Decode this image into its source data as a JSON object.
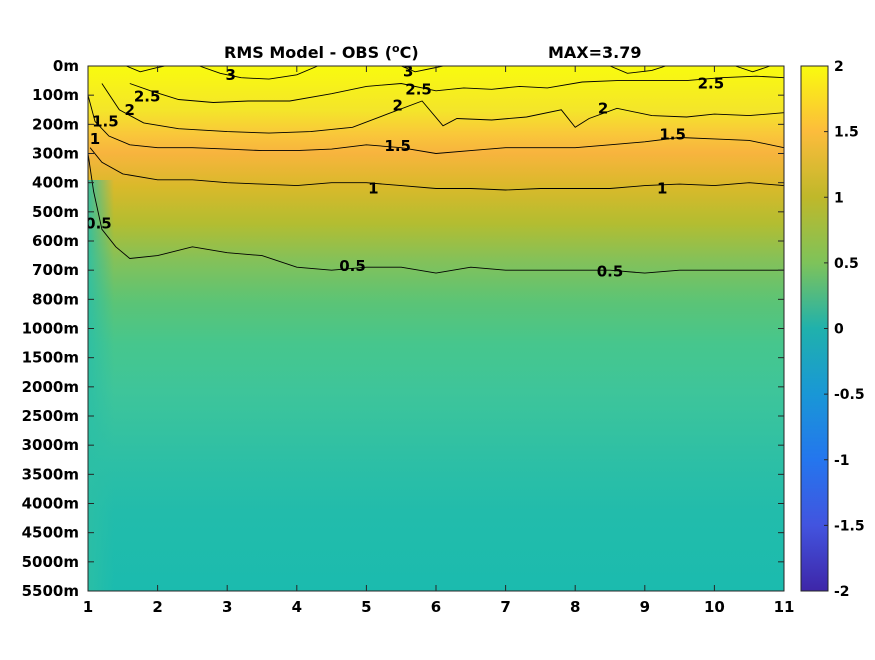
{
  "chart_data": {
    "type": "heatmap",
    "title": "RMS Model - OBS (",
    "title_unit": "o",
    "title_suffix": "C)",
    "max_label": "MAX=3.79",
    "x_ticks": [
      "1",
      "2",
      "3",
      "4",
      "5",
      "6",
      "7",
      "8",
      "9",
      "10",
      "11"
    ],
    "x_range": [
      1,
      11
    ],
    "y_ticks": [
      "0m",
      "100m",
      "200m",
      "300m",
      "400m",
      "500m",
      "600m",
      "700m",
      "800m",
      "1000m",
      "1500m",
      "2000m",
      "2500m",
      "3000m",
      "3500m",
      "4000m",
      "4500m",
      "5000m",
      "5500m"
    ],
    "y_direction": "depth increasing downward",
    "colorbar": {
      "ticks": [
        "2",
        "1.5",
        "1",
        "0.5",
        "0",
        "-0.5",
        "-1",
        "-1.5",
        "-2"
      ],
      "range": [
        -2,
        2
      ],
      "colormap": "parula"
    },
    "contour_levels": [
      3,
      2.5,
      2,
      1.5,
      1,
      0.5
    ],
    "contours": [
      {
        "level": 0.5,
        "label": "0.5",
        "points": [
          [
            1.0,
            300
          ],
          [
            1.08,
            430
          ],
          [
            1.2,
            560
          ],
          [
            1.4,
            620
          ],
          [
            1.6,
            660
          ],
          [
            2,
            650
          ],
          [
            2.5,
            620
          ],
          [
            3,
            640
          ],
          [
            3.5,
            650
          ],
          [
            4,
            690
          ],
          [
            4.5,
            700
          ],
          [
            5,
            690
          ],
          [
            5.5,
            690
          ],
          [
            6,
            710
          ],
          [
            6.5,
            690
          ],
          [
            7,
            700
          ],
          [
            7.5,
            700
          ],
          [
            8,
            700
          ],
          [
            8.5,
            700
          ],
          [
            9,
            710
          ],
          [
            9.5,
            700
          ],
          [
            10,
            700
          ],
          [
            10.5,
            700
          ],
          [
            11,
            700
          ]
        ]
      },
      {
        "level": 1,
        "label": "1",
        "points": [
          [
            1.03,
            280
          ],
          [
            1.2,
            330
          ],
          [
            1.5,
            370
          ],
          [
            2,
            390
          ],
          [
            2.5,
            390
          ],
          [
            3,
            400
          ],
          [
            3.5,
            405
          ],
          [
            4,
            410
          ],
          [
            4.5,
            400
          ],
          [
            5,
            400
          ],
          [
            5.5,
            410
          ],
          [
            6,
            420
          ],
          [
            6.5,
            420
          ],
          [
            7,
            425
          ],
          [
            7.5,
            420
          ],
          [
            8,
            420
          ],
          [
            8.5,
            420
          ],
          [
            9,
            410
          ],
          [
            9.5,
            405
          ],
          [
            10,
            410
          ],
          [
            10.5,
            400
          ],
          [
            11,
            410
          ]
        ]
      },
      {
        "level": 1.5,
        "label": "1.5",
        "points": [
          [
            1.0,
            100
          ],
          [
            1.1,
            190
          ],
          [
            1.3,
            240
          ],
          [
            1.6,
            270
          ],
          [
            2,
            280
          ],
          [
            2.5,
            280
          ],
          [
            3,
            285
          ],
          [
            3.5,
            290
          ],
          [
            4,
            290
          ],
          [
            4.5,
            285
          ],
          [
            5,
            270
          ],
          [
            5.5,
            280
          ],
          [
            6,
            300
          ],
          [
            6.5,
            290
          ],
          [
            7,
            280
          ],
          [
            7.5,
            280
          ],
          [
            8,
            280
          ],
          [
            8.5,
            270
          ],
          [
            9,
            260
          ],
          [
            9.5,
            245
          ],
          [
            10,
            250
          ],
          [
            10.5,
            255
          ],
          [
            11,
            280
          ]
        ]
      },
      {
        "level": 2,
        "label": "2",
        "points": [
          [
            1.2,
            60
          ],
          [
            1.45,
            150
          ],
          [
            1.8,
            195
          ],
          [
            2.3,
            215
          ],
          [
            3,
            225
          ],
          [
            3.6,
            230
          ],
          [
            4.2,
            225
          ],
          [
            4.8,
            210
          ],
          [
            5.3,
            165
          ],
          [
            5.8,
            120
          ],
          [
            6.1,
            205
          ],
          [
            6.3,
            180
          ],
          [
            6.8,
            185
          ],
          [
            7.3,
            175
          ],
          [
            7.8,
            150
          ],
          [
            8.0,
            210
          ],
          [
            8.2,
            180
          ],
          [
            8.6,
            145
          ],
          [
            9.1,
            170
          ],
          [
            9.6,
            175
          ],
          [
            10,
            165
          ],
          [
            10.5,
            170
          ],
          [
            11,
            160
          ]
        ]
      },
      {
        "level": 2.5,
        "label": "2.5",
        "points": [
          [
            1.6,
            60
          ],
          [
            1.9,
            85
          ],
          [
            2.3,
            115
          ],
          [
            2.8,
            125
          ],
          [
            3.3,
            120
          ],
          [
            3.9,
            120
          ],
          [
            4.5,
            95
          ],
          [
            5,
            70
          ],
          [
            5.5,
            60
          ],
          [
            6.0,
            85
          ],
          [
            6.4,
            75
          ],
          [
            6.8,
            80
          ],
          [
            7.2,
            70
          ],
          [
            7.6,
            75
          ],
          [
            8.1,
            55
          ],
          [
            8.6,
            50
          ],
          [
            9.1,
            50
          ],
          [
            9.6,
            50
          ],
          [
            10.1,
            40
          ],
          [
            10.6,
            35
          ],
          [
            11,
            40
          ]
        ]
      },
      {
        "level": 3,
        "label": "3",
        "points": [
          [
            2.6,
            0
          ],
          [
            2.9,
            25
          ],
          [
            3.2,
            40
          ],
          [
            3.6,
            45
          ],
          [
            4.0,
            30
          ],
          [
            4.3,
            0
          ]
        ]
      },
      {
        "level": 3,
        "label": "3",
        "points": [
          [
            5.5,
            0
          ],
          [
            5.7,
            20
          ],
          [
            6.0,
            5
          ],
          [
            6.1,
            0
          ]
        ]
      },
      {
        "level": 3,
        "label": "",
        "points": [
          [
            1.55,
            0
          ],
          [
            1.75,
            20
          ],
          [
            2.0,
            5
          ],
          [
            2.1,
            0
          ]
        ]
      },
      {
        "level": 3,
        "label": "",
        "points": [
          [
            8.5,
            0
          ],
          [
            8.75,
            25
          ],
          [
            9.1,
            15
          ],
          [
            9.3,
            0
          ]
        ]
      },
      {
        "level": 3,
        "label": "",
        "points": [
          [
            10.3,
            0
          ],
          [
            10.55,
            20
          ],
          [
            10.8,
            0
          ]
        ]
      }
    ],
    "contour_labels": [
      {
        "text": "3",
        "x": 3.05,
        "y": 30
      },
      {
        "text": "3",
        "x": 5.6,
        "y": 18
      },
      {
        "text": "2.5",
        "x": 1.85,
        "y": 105
      },
      {
        "text": "2.5",
        "x": 5.75,
        "y": 80
      },
      {
        "text": "2.5",
        "x": 9.95,
        "y": 60
      },
      {
        "text": "2",
        "x": 1.6,
        "y": 150
      },
      {
        "text": "2",
        "x": 5.45,
        "y": 135
      },
      {
        "text": "2",
        "x": 8.4,
        "y": 145
      },
      {
        "text": "1.5",
        "x": 1.25,
        "y": 190
      },
      {
        "text": "1.5",
        "x": 5.45,
        "y": 275
      },
      {
        "text": "1.5",
        "x": 9.4,
        "y": 235
      },
      {
        "text": "1",
        "x": 1.1,
        "y": 250
      },
      {
        "text": "1",
        "x": 5.1,
        "y": 420
      },
      {
        "text": "1",
        "x": 9.25,
        "y": 420
      },
      {
        "text": "0.5",
        "x": 1.15,
        "y": 540
      },
      {
        "text": "0.5",
        "x": 4.8,
        "y": 685
      },
      {
        "text": "0.5",
        "x": 8.5,
        "y": 705
      }
    ]
  }
}
